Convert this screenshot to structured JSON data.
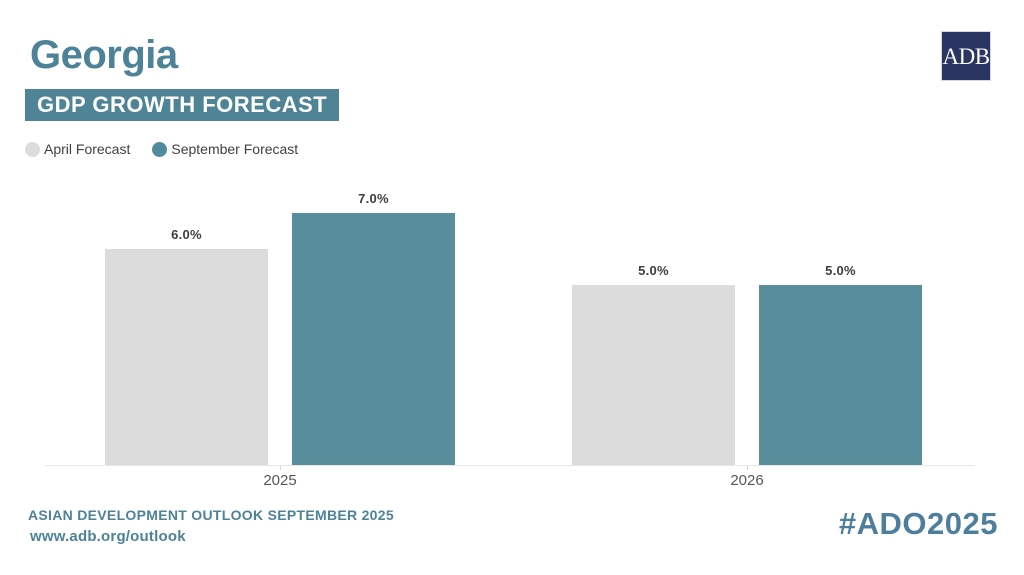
{
  "header": {
    "title": "Georgia",
    "badge": "GDP GROWTH FORECAST"
  },
  "logo": {
    "text": "ADB"
  },
  "legend": [
    {
      "label": "April Forecast",
      "color": "#dcdcdc"
    },
    {
      "label": "September Forecast",
      "color": "#4f8b9a"
    }
  ],
  "chart_data": {
    "type": "bar",
    "categories": [
      "2025",
      "2026"
    ],
    "series": [
      {
        "name": "April Forecast",
        "color": "#dcdcdc",
        "values": [
          6.0,
          5.0
        ],
        "value_labels": [
          "6.0%",
          "5.0%"
        ]
      },
      {
        "name": "September Forecast",
        "color": "#588e9c",
        "values": [
          7.0,
          5.0
        ],
        "value_labels": [
          "7.0%",
          "5.0%"
        ]
      }
    ],
    "title": "Georgia — GDP Growth Forecast",
    "xlabel": "",
    "ylabel": "",
    "ylim": [
      0,
      7.8
    ],
    "value_suffix": "%",
    "grid": false,
    "legend_position": "top-left"
  },
  "footer": {
    "line1": "ASIAN DEVELOPMENT OUTLOOK SEPTEMBER 2025",
    "line2": "www.adb.org/outlook",
    "hashtag": "#ADO2025"
  },
  "colors": {
    "teal_text": "#4c8398",
    "badge_bg": "#4e8496",
    "navy_logo": "#2a3563",
    "bar_april": "#dcdcdc",
    "bar_september": "#588e9c",
    "value_label_text": "#3d3d3d",
    "axis_line": "#e7e7e7",
    "year_label_text": "#565656"
  }
}
